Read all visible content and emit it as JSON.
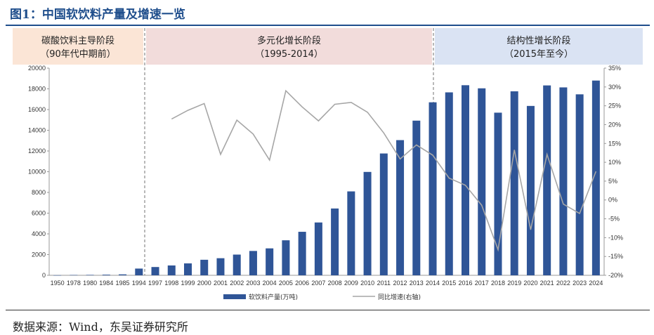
{
  "figure_title": "图1：中国软饮料产量及增速一览",
  "source": "数据来源：Wind，东吴证券研究所",
  "colors": {
    "bar": "#2f5597",
    "line": "#a6a6a6",
    "phase1": "#fbe5d6",
    "phase2": "#f2dcdb",
    "phase3": "#dae3f3",
    "title": "#1f4e8c"
  },
  "phases": [
    {
      "line1": "碳酸饮料主导阶段",
      "line2": "（90年代中期前）",
      "from": "1950",
      "to": "1994"
    },
    {
      "line1": "多元化增长阶段",
      "line2": "（1995-2014）",
      "from": "1997",
      "to": "2014"
    },
    {
      "line1": "结构性增长阶段",
      "line2": "（2015年至今）",
      "from": "2015",
      "to": "2024"
    }
  ],
  "chart_data": {
    "type": "bar",
    "categories": [
      "1950",
      "1978",
      "1980",
      "1984",
      "1985",
      "1994",
      "1997",
      "1998",
      "1999",
      "2000",
      "2001",
      "2002",
      "2003",
      "2004",
      "2005",
      "2006",
      "2007",
      "2008",
      "2009",
      "2010",
      "2011",
      "2012",
      "2013",
      "2014",
      "2015",
      "2016",
      "2017",
      "2018",
      "2019",
      "2020",
      "2021",
      "2022",
      "2023",
      "2024"
    ],
    "series": [
      {
        "name": "软饮料产量(万吨)",
        "type": "bar",
        "axis": "left",
        "values": [
          10,
          30,
          40,
          60,
          90,
          650,
          800,
          950,
          1150,
          1500,
          1650,
          2000,
          2350,
          2600,
          3380,
          4200,
          5100,
          6450,
          8100,
          9980,
          11760,
          13050,
          14930,
          16700,
          17660,
          18350,
          18050,
          15700,
          17760,
          16350,
          18330,
          18140,
          17470,
          18800
        ]
      },
      {
        "name": "同比增速(右轴)",
        "type": "line",
        "axis": "right",
        "values": [
          null,
          null,
          null,
          null,
          null,
          null,
          null,
          21.5,
          23.8,
          25.6,
          12.1,
          21.2,
          17.5,
          10.6,
          29.0,
          24.7,
          21.0,
          25.4,
          25.9,
          23.3,
          17.8,
          10.9,
          14.6,
          11.9,
          5.8,
          3.9,
          -1.4,
          -13.2,
          13.3,
          -7.9,
          12.1,
          -1.1,
          -3.6,
          7.6
        ]
      }
    ],
    "yaxis_left": {
      "min": 0,
      "max": 20000,
      "ticks": [
        "0",
        "2000",
        "4000",
        "6000",
        "8000",
        "10000",
        "12000",
        "14000",
        "16000",
        "18000",
        "20000"
      ]
    },
    "yaxis_right": {
      "min": -20,
      "max": 35,
      "ticks": [
        "-20%",
        "-15%",
        "-10%",
        "-5%",
        "0%",
        "5%",
        "10%",
        "15%",
        "20%",
        "25%",
        "30%",
        "35%"
      ]
    },
    "grid": false,
    "legend_position": "bottom"
  }
}
